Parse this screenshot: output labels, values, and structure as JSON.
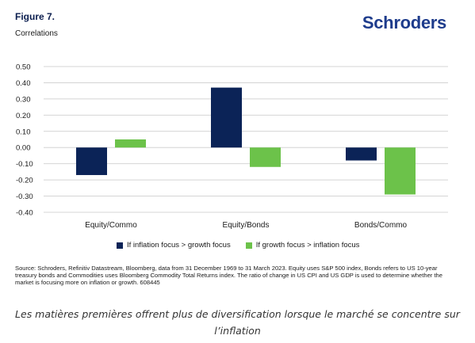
{
  "header": {
    "figure_label": "Figure 7.",
    "subtitle": "Correlations",
    "brand": "Schroders"
  },
  "colors": {
    "series_navy": "#0b2357",
    "series_green": "#6cc24a",
    "brand": "#1e3c8c",
    "grid": "#d4d4d4"
  },
  "chart_data": {
    "type": "bar",
    "categories": [
      "Equity/Commo",
      "Equity/Bonds",
      "Bonds/Commo"
    ],
    "series": [
      {
        "name": "If inflation focus > growth focus",
        "color": "#0b2357",
        "values": [
          -0.17,
          0.37,
          -0.08
        ]
      },
      {
        "name": "If growth focus > inflation focus",
        "color": "#6cc24a",
        "values": [
          0.05,
          -0.12,
          -0.29
        ]
      }
    ],
    "ylim": [
      -0.4,
      0.5
    ],
    "yticks": [
      "0.50",
      "0.40",
      "0.30",
      "0.20",
      "0.10",
      "0.00",
      "-0.10",
      "-0.20",
      "-0.30",
      "-0.40"
    ],
    "grid": true,
    "legend": "bottom"
  },
  "source_text": "Source: Schroders, Refinitiv Datastream, Bloomberg, data from 31 December 1969 to 31 March 2023. Equity uses S&P 500 index, Bonds refers to US 10-year treasury bonds and Commodities uses Bloomberg Commodity Total Returns index. The ratio of change in US CPI and US GDP is used to determine whether the market is focusing more on inflation or growth. 608445",
  "caption": "Les matières premières offrent plus de diversification lorsque le marché se concentre sur l’inflation"
}
